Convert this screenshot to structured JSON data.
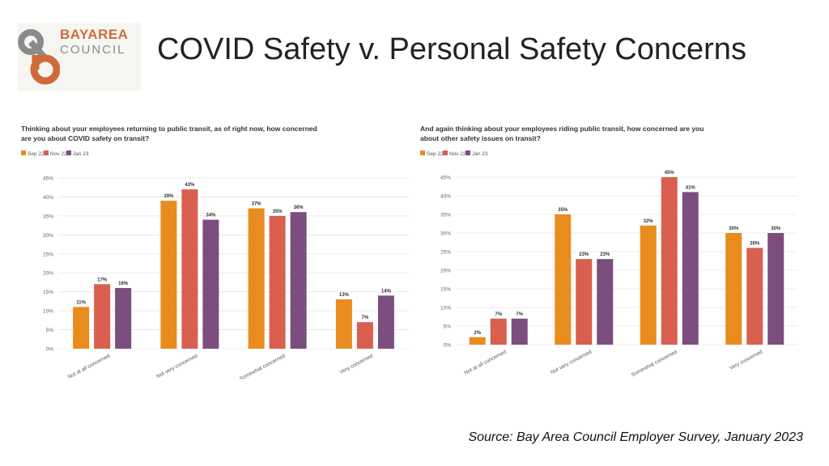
{
  "header": {
    "title": "COVID Safety v. Personal Safety Concerns",
    "logo_line1": "BAYAREA",
    "logo_line2": "COUNCIL"
  },
  "footer": {
    "source": "Source: Bay Area Council Employer Survey, January 2023"
  },
  "colors": {
    "sep22": "#e88c1e",
    "nov22": "#d95f4f",
    "jan23": "#7b4e7f",
    "logo_orange": "#d06a3a",
    "logo_gray": "#8a8a8a"
  },
  "chart_data": [
    {
      "type": "bar",
      "title": "Thinking about your employees returning to public transit, as of right now, how concerned are you about COVID safety on transit?",
      "categories": [
        "Not at all concerned",
        "Not very concerned",
        "Somewhat concerned",
        "Very concerned"
      ],
      "series": [
        {
          "name": "Sep 22",
          "values": [
            11,
            39,
            37,
            13
          ]
        },
        {
          "name": "Nov 22",
          "values": [
            17,
            42,
            35,
            7
          ]
        },
        {
          "name": "Jan 23",
          "values": [
            16,
            34,
            36,
            14
          ]
        }
      ],
      "ylim": [
        0,
        45
      ],
      "yticks": [
        "0%",
        "5%",
        "10%",
        "15%",
        "20%",
        "25%",
        "30%",
        "35%",
        "40%",
        "45%"
      ],
      "legend": "top-left",
      "grid": true
    },
    {
      "type": "bar",
      "title": "And again thinking about your employees riding public transit, how concerned are you about other safety issues on transit?",
      "categories": [
        "Not at all concerned",
        "Not very concerned",
        "Somewhat concerned",
        "Very concerned"
      ],
      "series": [
        {
          "name": "Sep 22",
          "values": [
            2,
            35,
            32,
            30
          ]
        },
        {
          "name": "Nov 22",
          "values": [
            7,
            23,
            45,
            26
          ]
        },
        {
          "name": "Jan 23",
          "values": [
            7,
            23,
            41,
            30
          ]
        }
      ],
      "ylim": [
        0,
        45
      ],
      "yticks": [
        "0%",
        "5%",
        "10%",
        "15%",
        "20%",
        "25%",
        "30%",
        "35%",
        "40%",
        "45%"
      ],
      "legend": "top-left",
      "grid": true
    }
  ]
}
